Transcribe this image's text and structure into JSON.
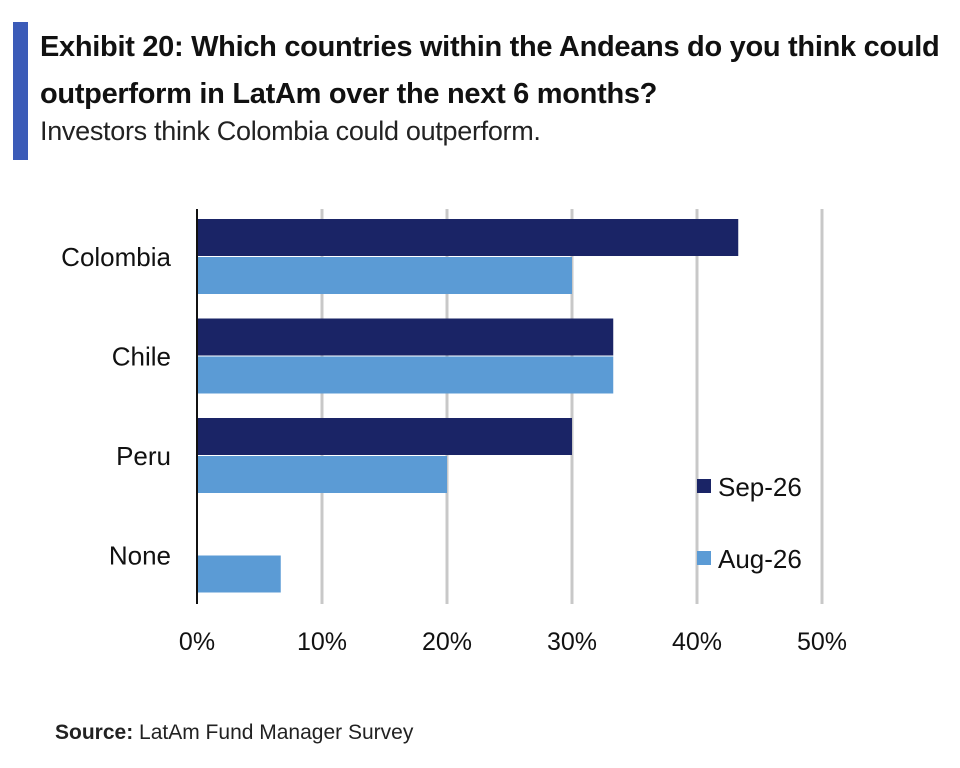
{
  "header": {
    "title": "Exhibit 20: Which countries within the Andeans do you think could outperform in LatAm over the next 6 months?",
    "subtitle": "Investors think Colombia could outperform."
  },
  "footer": {
    "source_label": "Source:",
    "source_text": "LatAm Fund Manager Survey"
  },
  "colors": {
    "accent": "#3b5bb8",
    "series_sep": "#1a2466",
    "series_aug": "#5b9bd5",
    "grid": "#c8c8c8"
  },
  "chart_data": {
    "type": "bar",
    "orientation": "horizontal",
    "categories": [
      "Colombia",
      "Chile",
      "Peru",
      "None"
    ],
    "series": [
      {
        "name": "Sep-26",
        "values": [
          43.3,
          33.3,
          30.0,
          0
        ]
      },
      {
        "name": "Aug-26",
        "values": [
          30.0,
          33.3,
          20.0,
          6.7
        ]
      }
    ],
    "xlim": [
      0,
      50
    ],
    "xticks": [
      "0%",
      "10%",
      "20%",
      "30%",
      "40%",
      "50%"
    ],
    "grid": true,
    "legend_position": "bottom-right"
  }
}
